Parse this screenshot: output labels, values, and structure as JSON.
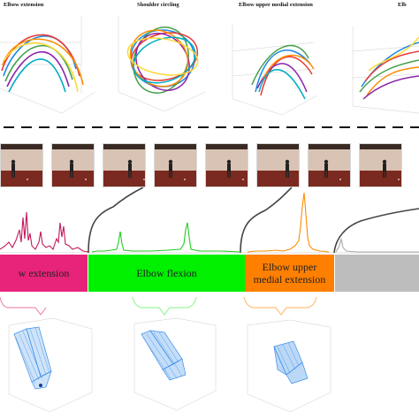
{
  "top_panels": [
    {
      "title": "Elbow extension"
    },
    {
      "title": "Shoulder circling"
    },
    {
      "title": "Elbow upper medial extension"
    },
    {
      "title": "Elb"
    }
  ],
  "video_frames": {
    "count": 8
  },
  "segments": [
    {
      "label": "w extension",
      "color": "#e8237a",
      "signal_color": "#c2185b"
    },
    {
      "label": "Elbow flexion",
      "color": "#00f000",
      "signal_color": "#22cc22"
    },
    {
      "label_line1": "Elbow upper",
      "label_line2": "medial extension",
      "color": "#ff7f00",
      "signal_color": "#ff8c00"
    },
    {
      "label": "",
      "color": "#bdbdbd",
      "signal_color": "#aaaaaa"
    }
  ],
  "colors": {
    "mesh": "#3b8fe8",
    "frame_wall": "#d9c3b4",
    "frame_floor": "#7a2a20",
    "connector": "#444444"
  },
  "icons": [
    "dashed-separator",
    "bracket-arrow",
    "person-silhouette"
  ]
}
